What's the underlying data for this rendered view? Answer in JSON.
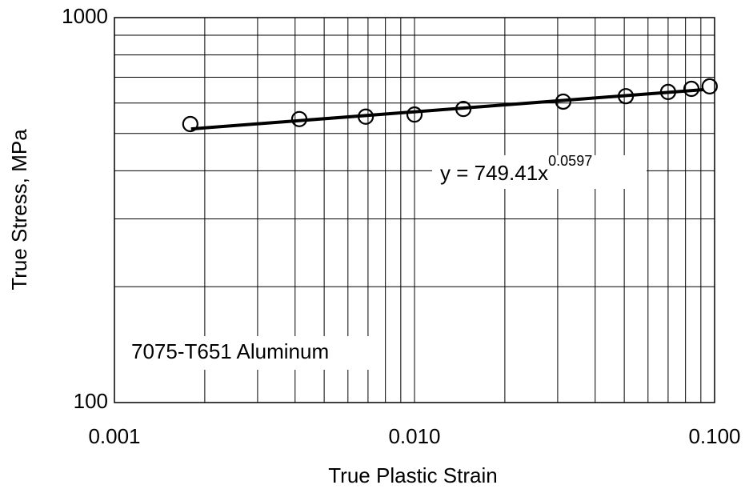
{
  "chart_data": {
    "type": "scatter",
    "xlabel": "True Plastic Strain",
    "ylabel": "True Stress, MPa",
    "xscale": "log",
    "yscale": "log",
    "xlim": [
      0.001,
      0.1
    ],
    "ylim": [
      100,
      1000
    ],
    "xticks": [
      0.001,
      {
        "value": 0.01,
        "label": "0.010"
      },
      {
        "value": 0.1,
        "label": "0.100"
      }
    ],
    "yticks": [
      100,
      1000
    ],
    "xminorticks": [
      0.002,
      0.003,
      0.004,
      0.005,
      0.006,
      0.007,
      0.008,
      0.009,
      0.02,
      0.03,
      0.04,
      0.05,
      0.06,
      0.07,
      0.08,
      0.09
    ],
    "yminorticks": [
      200,
      300,
      400,
      500,
      600,
      700,
      800,
      900
    ],
    "grid": true,
    "series": [
      {
        "color": "#000000",
        "x": [
          0.00179,
          0.00413,
          0.00688,
          0.01,
          0.01455,
          0.0313,
          0.0506,
          0.07,
          0.0837,
          0.0963
        ],
        "values": [
          529,
          545,
          553,
          560,
          579,
          605,
          625,
          641,
          653,
          663
        ]
      }
    ],
    "fit": {
      "label": "y = 749.41x",
      "exponent_label": "0.0597",
      "coefficient": 749.41,
      "exponent": 0.0597,
      "x": [
        0.0018,
        0.092
      ],
      "color": "#000000"
    },
    "annotation": "7075-T651 Aluminum"
  }
}
